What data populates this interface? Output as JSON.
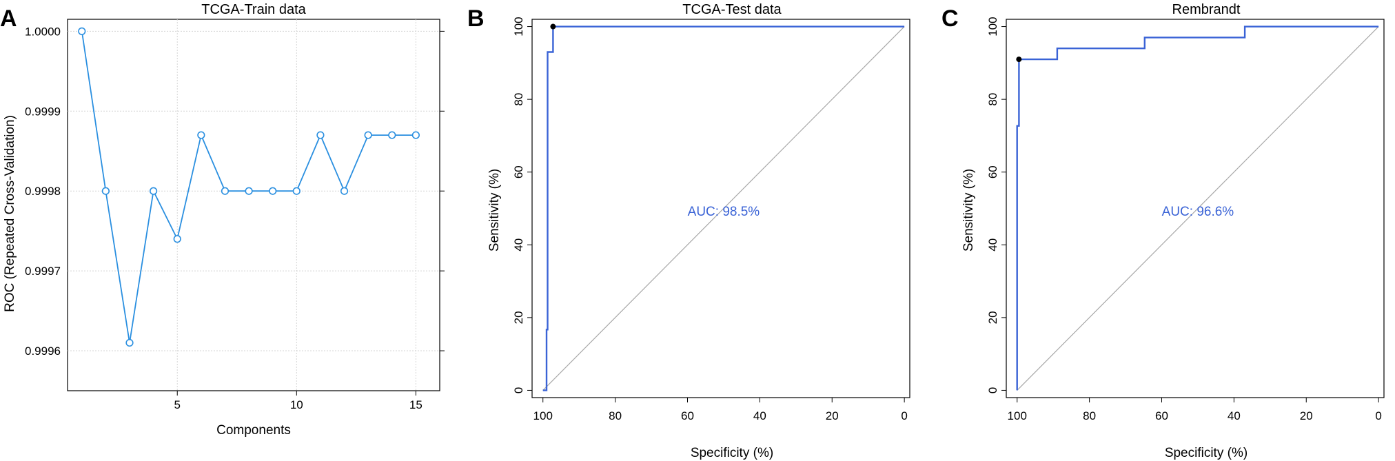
{
  "colors": {
    "panel_a_line": "#2a8fe0",
    "roc_line": "#3a63d6",
    "auc_text": "#3a63d6",
    "diagonal": "#a8a8a8",
    "grid": "#d4d4d4",
    "point": "#000000"
  },
  "chart_data": [
    {
      "panel": "A",
      "type": "line",
      "title": "TCGA-Train data",
      "xlabel": "Components",
      "ylabel": "ROC (Repeated Cross-Validation)",
      "markers": "open-circle",
      "grid": true,
      "xlim": [
        0.4,
        16.0
      ],
      "ylim": [
        0.99955,
        1.000015
      ],
      "xticks": [
        5,
        10,
        15
      ],
      "yticks": [
        0.9996,
        0.9997,
        0.9998,
        0.9999,
        1.0
      ],
      "ytick_labels": [
        "0.9996",
        "0.9997",
        "0.9998",
        "0.9999",
        "1.0000"
      ],
      "x": [
        1,
        2,
        3,
        4,
        5,
        6,
        7,
        8,
        9,
        10,
        11,
        12,
        13,
        14,
        15
      ],
      "y": [
        1.0,
        0.9998,
        0.99961,
        0.9998,
        0.99974,
        0.99987,
        0.9998,
        0.9998,
        0.9998,
        0.9998,
        0.99987,
        0.9998,
        0.99987,
        0.99987,
        0.99987
      ]
    },
    {
      "panel": "B",
      "type": "line",
      "title": "TCGA-Test data",
      "xlabel": "Specificity (%)",
      "ylabel": "Sensitivity (%)",
      "x_reversed": true,
      "xlim": [
        103,
        -1.5
      ],
      "ylim": [
        -2,
        102
      ],
      "xticks": [
        100,
        80,
        60,
        40,
        20,
        0
      ],
      "yticks": [
        0,
        20,
        40,
        60,
        80,
        100
      ],
      "specificity": [
        100,
        99,
        99,
        98.7,
        98.7,
        97.2,
        97.2,
        0
      ],
      "sensitivity": [
        0,
        0,
        16.7,
        16.7,
        93,
        93,
        100,
        100
      ],
      "best_point": {
        "specificity": 97.2,
        "sensitivity": 100
      },
      "auc_label": "AUC: 98.5%",
      "auc_label_pos": {
        "specificity": 50,
        "sensitivity": 48
      }
    },
    {
      "panel": "C",
      "type": "line",
      "title": "Rembrandt",
      "xlabel": "Specificity (%)",
      "ylabel": "Sensitivity (%)",
      "x_reversed": true,
      "xlim": [
        103,
        -1.5
      ],
      "ylim": [
        -2,
        102
      ],
      "xticks": [
        100,
        80,
        60,
        40,
        20,
        0
      ],
      "yticks": [
        0,
        20,
        40,
        60,
        80,
        100
      ],
      "specificity": [
        100,
        100,
        99.5,
        99.5,
        88.9,
        88.9,
        64.7,
        64.7,
        37,
        37,
        0
      ],
      "sensitivity": [
        0,
        72.7,
        72.7,
        91,
        91,
        94,
        94,
        97,
        97,
        100,
        100
      ],
      "best_point": {
        "specificity": 99.5,
        "sensitivity": 91
      },
      "auc_label": "AUC: 96.6%",
      "auc_label_pos": {
        "specificity": 50,
        "sensitivity": 48
      }
    }
  ]
}
